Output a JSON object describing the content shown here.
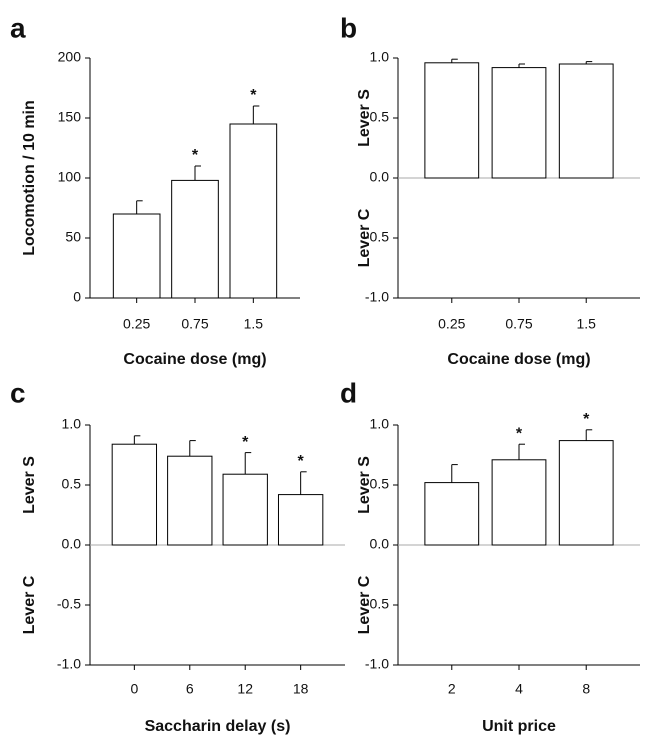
{
  "chart_data": [
    {
      "type": "bar",
      "panel": "a",
      "ylabel": "Locomotion / 10 min",
      "xlabel": "Cocaine dose (mg)",
      "categories": [
        "0.25",
        "0.75",
        "1.5"
      ],
      "values": [
        70,
        98,
        145
      ],
      "errors": [
        11,
        12,
        15
      ],
      "annotations": [
        {
          "text": "*",
          "category": "0.75"
        },
        {
          "text": "*",
          "category": "1.5"
        }
      ],
      "color": "#ffffff",
      "ylim": [
        0,
        200
      ],
      "yticks": [
        0,
        50,
        100,
        150,
        200
      ]
    },
    {
      "type": "bar",
      "panel": "b",
      "ylabels": [
        "Lever S",
        "Lever C"
      ],
      "xlabel": "Cocaine dose (mg)",
      "categories": [
        "0.25",
        "0.75",
        "1.5"
      ],
      "values": [
        0.96,
        0.92,
        0.95
      ],
      "errors": [
        0.03,
        0.03,
        0.02
      ],
      "color": "#ffffff",
      "ylim": [
        -1,
        1
      ],
      "yticks": [
        {
          "value": -1,
          "label": "-1.0"
        },
        {
          "value": -0.5,
          "label": "-0.5"
        },
        {
          "value": 0,
          "label": "0.0"
        },
        {
          "value": 0.5,
          "label": "0.5"
        },
        {
          "value": 1,
          "label": "1.0"
        }
      ]
    },
    {
      "type": "bar",
      "panel": "c",
      "ylabels": [
        "Lever S",
        "Lever C"
      ],
      "xlabel": "Saccharin delay (s)",
      "categories": [
        "0",
        "6",
        "12",
        "18"
      ],
      "values": [
        0.84,
        0.74,
        0.59,
        0.42
      ],
      "errors": [
        0.07,
        0.13,
        0.18,
        0.19
      ],
      "annotations": [
        {
          "text": "*",
          "category": "12"
        },
        {
          "text": "*",
          "category": "18"
        }
      ],
      "color": "#ffffff",
      "ylim": [
        -1,
        1
      ],
      "yticks": [
        {
          "value": -1,
          "label": "-1.0"
        },
        {
          "value": -0.5,
          "label": "-0.5"
        },
        {
          "value": 0,
          "label": "0.0"
        },
        {
          "value": 0.5,
          "label": "0.5"
        },
        {
          "value": 1,
          "label": "1.0"
        }
      ]
    },
    {
      "type": "bar",
      "panel": "d",
      "ylabels": [
        "Lever S",
        "Lever C"
      ],
      "xlabel": "Unit price",
      "categories": [
        "2",
        "4",
        "8"
      ],
      "values": [
        0.52,
        0.71,
        0.87
      ],
      "errors": [
        0.15,
        0.13,
        0.09
      ],
      "annotations": [
        {
          "text": "*",
          "category": "4"
        },
        {
          "text": "*",
          "category": "8"
        }
      ],
      "color": "#ffffff",
      "ylim": [
        -1,
        1
      ],
      "yticks": [
        {
          "value": -1,
          "label": "-1.0"
        },
        {
          "value": -0.5,
          "label": "-0.5"
        },
        {
          "value": 0,
          "label": "0.0"
        },
        {
          "value": 0.5,
          "label": "0.5"
        },
        {
          "value": 1,
          "label": "1.0"
        }
      ]
    }
  ]
}
